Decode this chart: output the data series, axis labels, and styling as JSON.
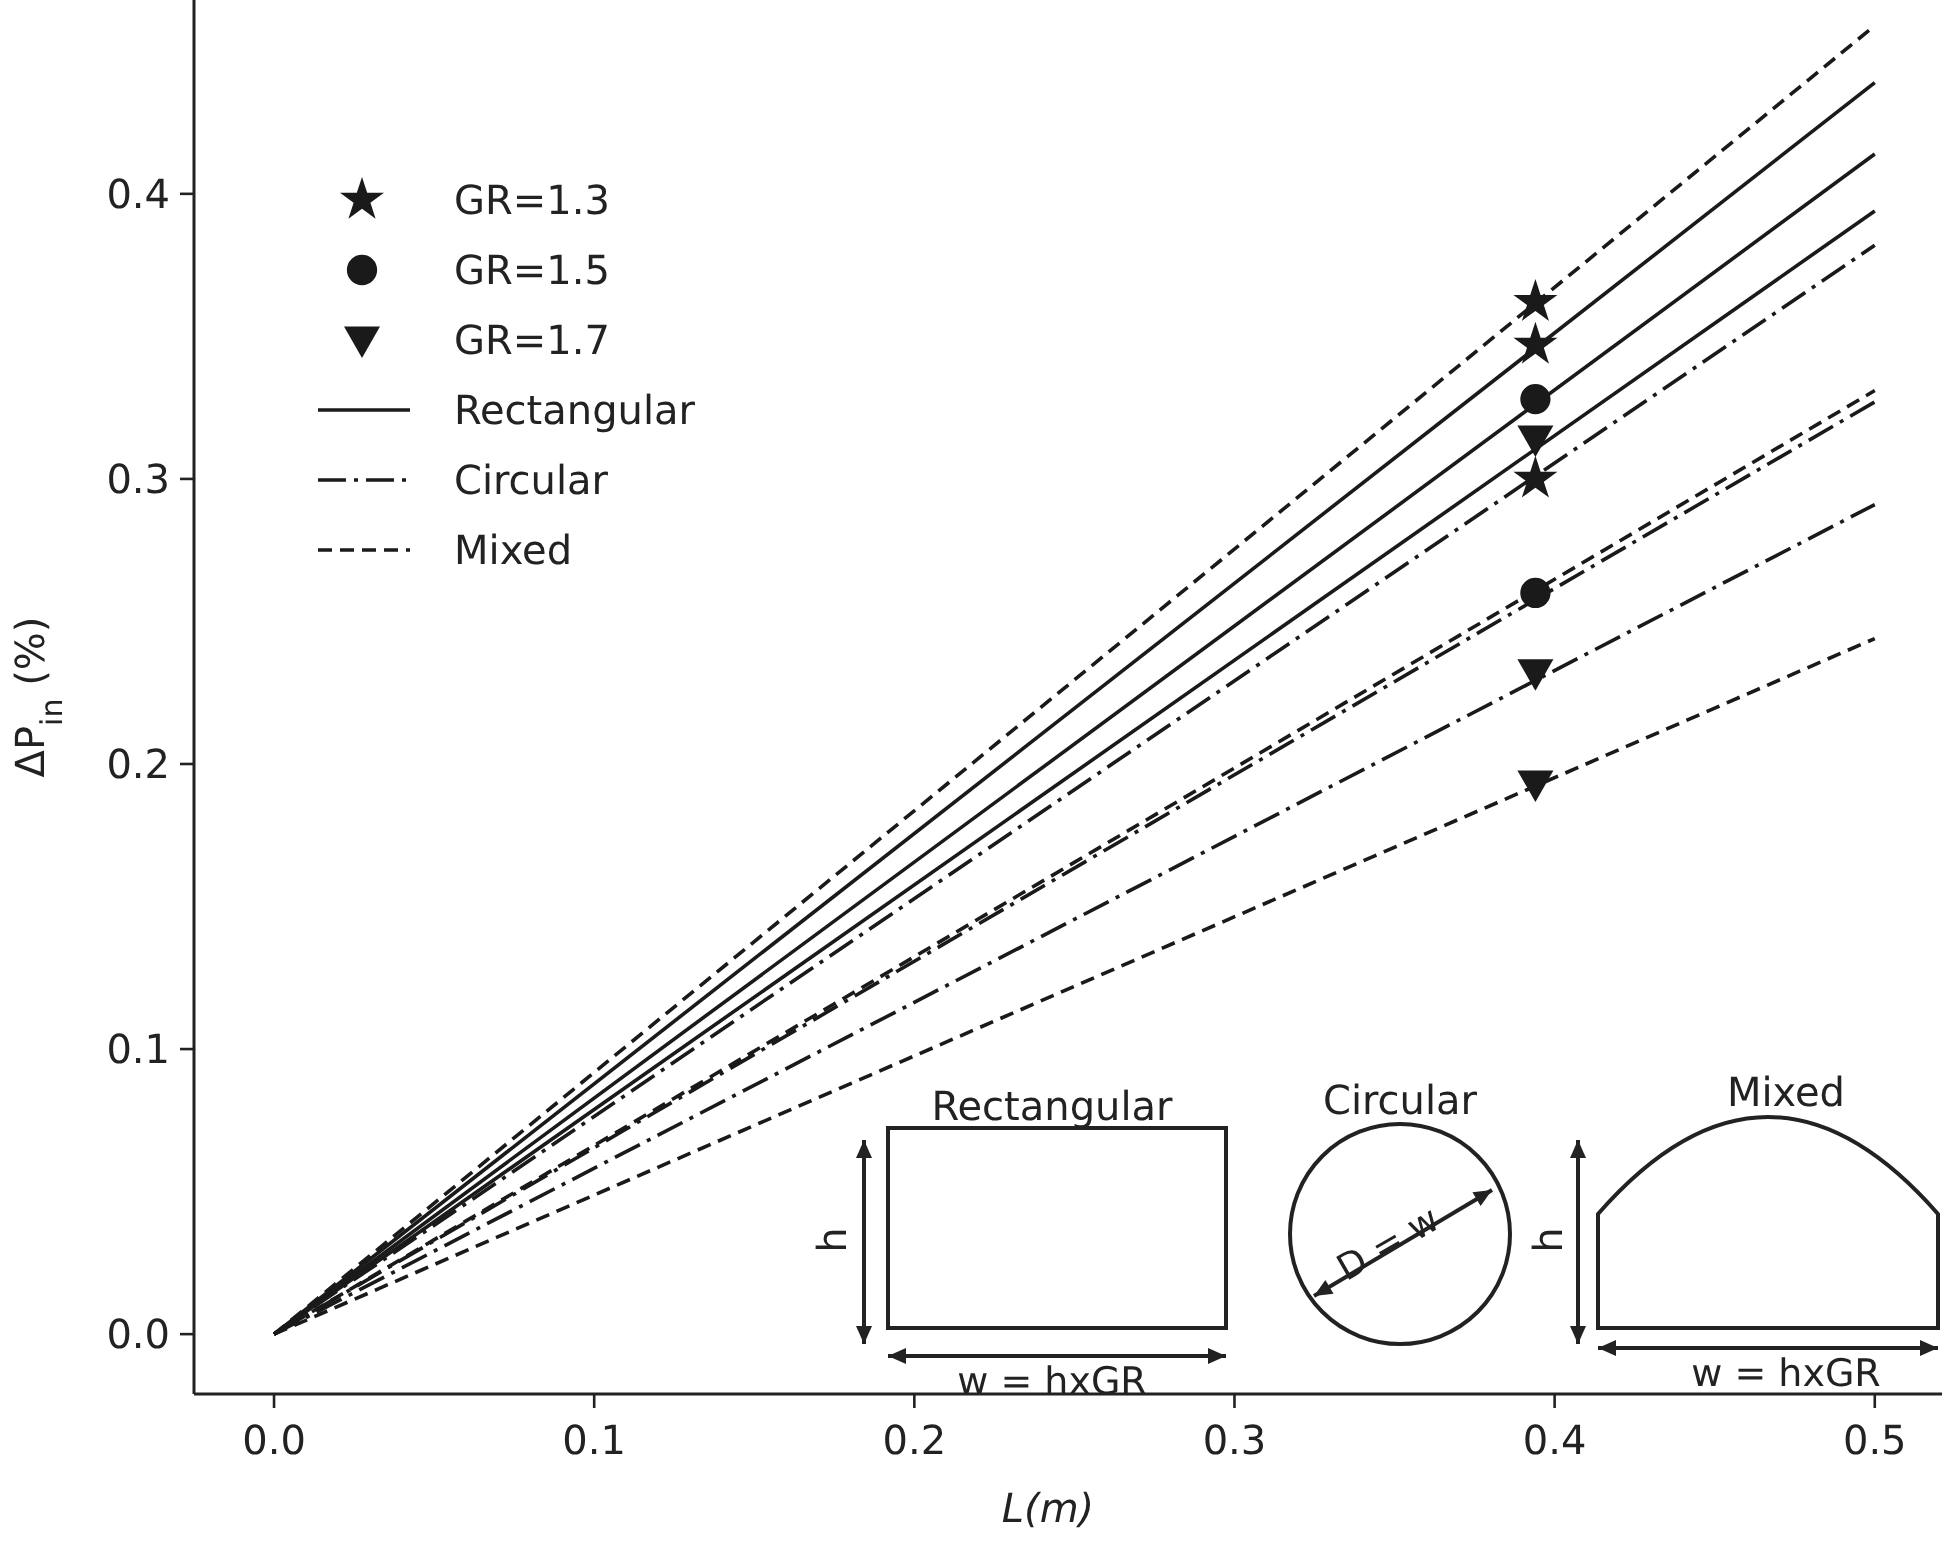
{
  "chart_data": {
    "type": "line",
    "xlabel": "L(m)",
    "ylabel": "ΔP$_{in}$ (%)",
    "xlim": [
      -0.025,
      0.521
    ],
    "ylim": [
      -0.021,
      0.468
    ],
    "xticks": [
      {
        "value": 0,
        "label": "0.0"
      },
      {
        "value": 0.1,
        "label": "0.1"
      },
      {
        "value": 0.2,
        "label": "0.2"
      },
      {
        "value": 0.3,
        "label": "0.3"
      },
      {
        "value": 0.4,
        "label": "0.4"
      },
      {
        "value": 0.5,
        "label": "0.5"
      }
    ],
    "yticks": [
      {
        "value": 0,
        "label": "0.0"
      },
      {
        "value": 0.1,
        "label": "0.1"
      },
      {
        "value": 0.2,
        "label": "0.2"
      },
      {
        "value": 0.3,
        "label": "0.3"
      },
      {
        "value": 0.4,
        "label": "0.4"
      }
    ],
    "grid": false,
    "legend": "top left",
    "series": [
      {
        "name": "GR=1.3",
        "type": "scatter",
        "marker": "star",
        "color": "#1a1a1a",
        "x": [
          0.394,
          0.394,
          0.394
        ],
        "values": [
          0.362,
          0.347,
          0.3
        ]
      },
      {
        "name": "GR=1.5",
        "type": "scatter",
        "marker": "circle",
        "color": "#1a1a1a",
        "x": [
          0.394,
          0.394
        ],
        "values": [
          0.328,
          0.26
        ]
      },
      {
        "name": "GR=1.7",
        "type": "scatter",
        "marker": "triangle",
        "color": "#1a1a1a",
        "x": [
          0.394,
          0.394,
          0.394
        ],
        "values": [
          0.314,
          0.232,
          0.193
        ]
      },
      {
        "name": "Rectangular",
        "type": "line",
        "line_style": "solid",
        "color": "#1a1a1a",
        "x": [
          0,
          0.5
        ],
        "values": [
          0,
          0.439
        ]
      },
      {
        "name": "Circular",
        "type": "line",
        "line_style": "dashdot",
        "color": "#1a1a1a",
        "x": [
          0,
          0.5
        ],
        "values": [
          0,
          0.382
        ]
      },
      {
        "name": "Mixed",
        "type": "line",
        "line_style": "dashed",
        "color": "#1a1a1a",
        "x": [
          0,
          0.5
        ],
        "values": [
          0,
          0.459
        ]
      },
      {
        "type": "line",
        "line_style": "solid",
        "color": "#1a1a1a",
        "x": [
          0,
          0.5
        ],
        "values": [
          0,
          0.414
        ]
      },
      {
        "type": "line",
        "line_style": "solid",
        "color": "#1a1a1a",
        "x": [
          0,
          0.5
        ],
        "values": [
          0,
          0.394
        ]
      },
      {
        "type": "line",
        "line_style": "dashdot",
        "color": "#1a1a1a",
        "x": [
          0,
          0.5
        ],
        "values": [
          0,
          0.327
        ]
      },
      {
        "type": "line",
        "line_style": "dashdot",
        "color": "#1a1a1a",
        "x": [
          0,
          0.5
        ],
        "values": [
          0,
          0.291
        ]
      },
      {
        "type": "line",
        "line_style": "dashed",
        "color": "#1a1a1a",
        "x": [
          0,
          0.5
        ],
        "values": [
          0,
          0.331
        ]
      },
      {
        "type": "line",
        "line_style": "dashed",
        "color": "#1a1a1a",
        "x": [
          0,
          0.5
        ],
        "values": [
          0,
          0.244
        ]
      }
    ],
    "annotations": [
      "Rectangular",
      "Circular",
      "Mixed",
      "h",
      "w = hxGR",
      "D = w",
      "h",
      "w = hxGR"
    ]
  }
}
